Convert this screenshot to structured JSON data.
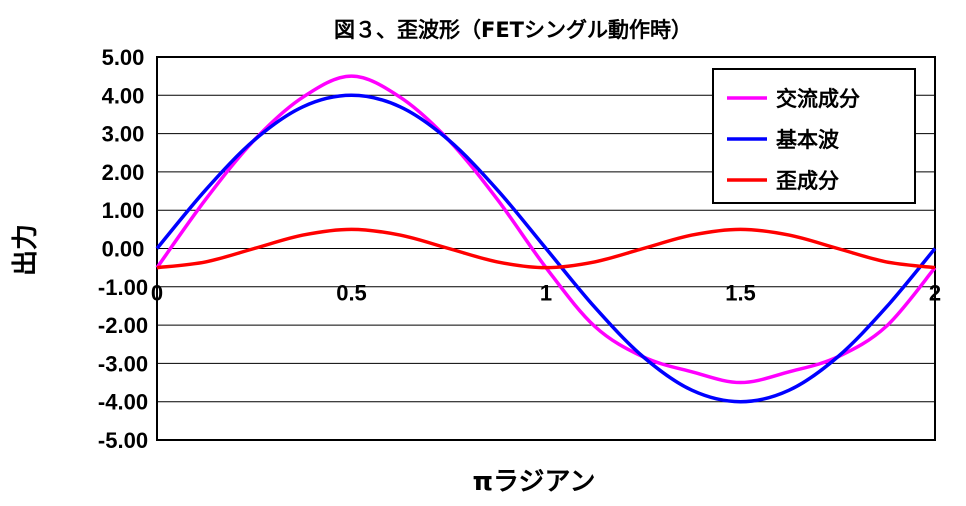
{
  "chart_data": {
    "type": "line",
    "title": "図３、歪波形（FETシングル動作時）",
    "xlabel": "πラジアン",
    "ylabel": "出力",
    "xlim": [
      0,
      2
    ],
    "ylim": [
      -5,
      5
    ],
    "x_ticks": [
      0,
      0.5,
      1,
      1.5,
      2
    ],
    "x_tick_labels": [
      "0",
      "0.5",
      "1",
      "1.5",
      "2"
    ],
    "y_ticks": [
      5,
      4,
      3,
      2,
      1,
      0,
      -1,
      -2,
      -3,
      -4,
      -5
    ],
    "y_tick_labels": [
      "5.00",
      "4.00",
      "3.00",
      "2.00",
      "1.00",
      "0.00",
      "-1.00",
      "-2.00",
      "-3.00",
      "-4.00",
      "-5.00"
    ],
    "grid": true,
    "legend_position": "top-right",
    "x": [
      0,
      0.125,
      0.25,
      0.375,
      0.5,
      0.625,
      0.75,
      0.875,
      1,
      1.125,
      1.25,
      1.375,
      1.5,
      1.625,
      1.75,
      1.875,
      2
    ],
    "series": [
      {
        "name": "交流成分",
        "color": "#ff00ff",
        "values": [
          -0.5,
          1.28,
          2.83,
          3.95,
          4.5,
          3.95,
          2.83,
          1.28,
          -0.5,
          -2.03,
          -2.83,
          -3.22,
          -3.5,
          -3.22,
          -2.83,
          -2.03,
          -0.5
        ]
      },
      {
        "name": "基本波",
        "color": "#0000ff",
        "values": [
          0,
          1.53,
          2.83,
          3.7,
          4.0,
          3.7,
          2.83,
          1.53,
          0,
          -1.53,
          -2.83,
          -3.7,
          -4.0,
          -3.7,
          -2.83,
          -1.53,
          0
        ]
      },
      {
        "name": "歪成分",
        "color": "#ff0000",
        "values": [
          -0.5,
          -0.35,
          0.0,
          0.35,
          0.5,
          0.35,
          0.0,
          -0.35,
          -0.5,
          -0.35,
          0.0,
          0.35,
          0.5,
          0.35,
          0.0,
          -0.35,
          -0.5
        ]
      }
    ]
  }
}
